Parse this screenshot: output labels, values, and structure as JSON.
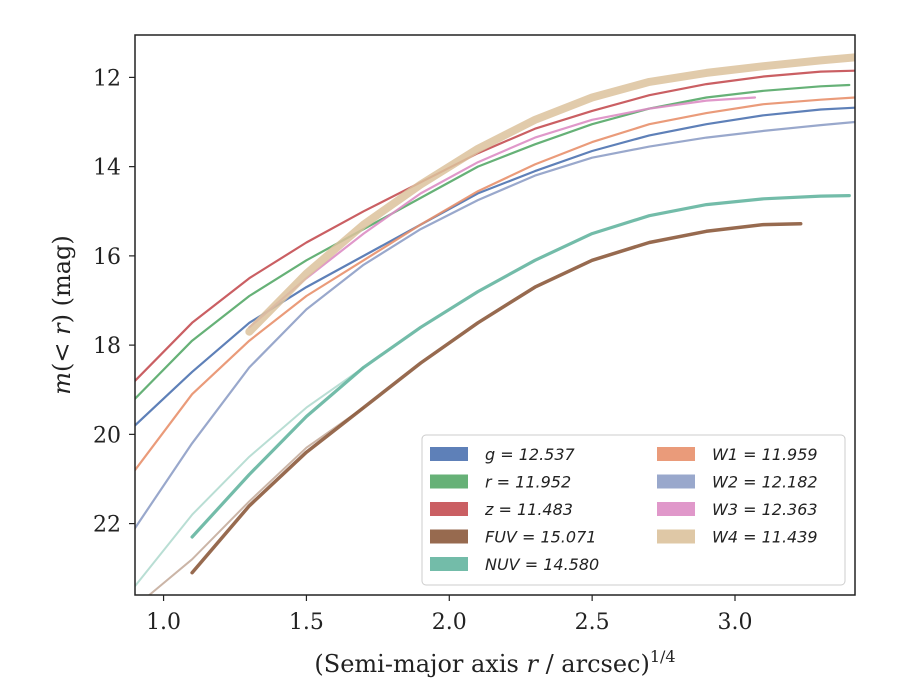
{
  "chart_data": {
    "type": "line",
    "title": "",
    "xlabel": "(Semi-major axis r / arcsec)^{1/4}",
    "ylabel": "m(< r) (mag)",
    "xlim": [
      0.9,
      3.42
    ],
    "ylim": [
      23.6,
      11.05
    ],
    "y_inverted": true,
    "grid": false,
    "legend_position": "bottom-right",
    "x_ticks": [
      "1.0",
      "1.5",
      "2.0",
      "2.5",
      "3.0"
    ],
    "y_ticks": [
      "12",
      "14",
      "16",
      "18",
      "20",
      "22"
    ],
    "series": [
      {
        "name": "g = 12.537",
        "color": "#4c72b0",
        "x": [
          0.9,
          1.1,
          1.3,
          1.5,
          1.7,
          1.9,
          2.1,
          2.3,
          2.5,
          2.7,
          2.9,
          3.1,
          3.3,
          3.42
        ],
        "y": [
          19.8,
          18.6,
          17.5,
          16.7,
          16.0,
          15.3,
          14.6,
          14.1,
          13.65,
          13.3,
          13.05,
          12.85,
          12.72,
          12.68
        ]
      },
      {
        "name": "r = 11.952",
        "color": "#55a868",
        "x": [
          0.9,
          1.1,
          1.3,
          1.5,
          1.7,
          1.9,
          2.1,
          2.3,
          2.5,
          2.7,
          2.9,
          3.1,
          3.3,
          3.4
        ],
        "y": [
          19.2,
          17.9,
          16.9,
          16.1,
          15.4,
          14.7,
          14.0,
          13.5,
          13.05,
          12.7,
          12.45,
          12.3,
          12.2,
          12.17
        ]
      },
      {
        "name": "z = 11.483",
        "color": "#c44e52",
        "x": [
          0.9,
          1.1,
          1.3,
          1.5,
          1.7,
          1.9,
          2.1,
          2.3,
          2.5,
          2.7,
          2.9,
          3.1,
          3.3,
          3.42
        ],
        "y": [
          18.8,
          17.5,
          16.5,
          15.7,
          15.0,
          14.35,
          13.7,
          13.15,
          12.75,
          12.4,
          12.15,
          11.98,
          11.87,
          11.85
        ]
      },
      {
        "name": "FUV = 15.071",
        "color": "#8c5a3c",
        "x": [
          1.1,
          1.3,
          1.5,
          1.7,
          1.9,
          2.1,
          2.3,
          2.5,
          2.7,
          2.9,
          3.1,
          3.23
        ],
        "y": [
          23.1,
          21.6,
          20.4,
          19.4,
          18.4,
          17.5,
          16.7,
          16.1,
          15.7,
          15.45,
          15.3,
          15.28
        ]
      },
      {
        "name": "NUV = 14.580",
        "color": "#64b5a0",
        "x": [
          1.1,
          1.3,
          1.5,
          1.7,
          1.9,
          2.1,
          2.3,
          2.5,
          2.7,
          2.9,
          3.1,
          3.3,
          3.4
        ],
        "y": [
          22.3,
          20.9,
          19.6,
          18.5,
          17.6,
          16.8,
          16.1,
          15.5,
          15.1,
          14.85,
          14.72,
          14.66,
          14.65
        ]
      },
      {
        "name": "W1 = 11.959",
        "color": "#e8906c",
        "x": [
          0.9,
          1.1,
          1.3,
          1.5,
          1.7,
          1.9,
          2.1,
          2.3,
          2.5,
          2.7,
          2.9,
          3.1,
          3.3,
          3.42
        ],
        "y": [
          20.8,
          19.1,
          17.9,
          16.9,
          16.1,
          15.3,
          14.55,
          13.95,
          13.45,
          13.05,
          12.8,
          12.6,
          12.5,
          12.45
        ]
      },
      {
        "name": "W2 = 12.182",
        "color": "#8e9ec6",
        "x": [
          0.9,
          1.1,
          1.3,
          1.5,
          1.7,
          1.9,
          2.1,
          2.3,
          2.5,
          2.7,
          2.9,
          3.1,
          3.3,
          3.42
        ],
        "y": [
          22.1,
          20.2,
          18.5,
          17.2,
          16.2,
          15.4,
          14.75,
          14.2,
          13.8,
          13.55,
          13.35,
          13.2,
          13.07,
          13.0
        ]
      },
      {
        "name": "W3 = 12.363",
        "color": "#dd8dc4",
        "x": [
          1.3,
          1.5,
          1.7,
          1.9,
          2.1,
          2.3,
          2.5,
          2.7,
          2.9,
          3.07
        ],
        "y": [
          17.6,
          16.5,
          15.5,
          14.6,
          13.9,
          13.35,
          12.95,
          12.7,
          12.52,
          12.45
        ]
      },
      {
        "name": "W4 = 11.439",
        "color": "#dcc29c",
        "x": [
          1.3,
          1.5,
          1.7,
          1.9,
          2.1,
          2.3,
          2.5,
          2.7,
          2.9,
          3.1,
          3.3,
          3.42
        ],
        "y": [
          17.7,
          16.4,
          15.3,
          14.4,
          13.6,
          12.95,
          12.45,
          12.1,
          11.9,
          11.75,
          11.62,
          11.55
        ]
      }
    ],
    "faint_inner_extensions": [
      {
        "series": "NUV = 14.580",
        "color": "#64b5a0",
        "x": [
          0.9,
          1.1,
          1.3,
          1.5,
          1.7
        ],
        "y": [
          23.4,
          21.8,
          20.5,
          19.4,
          18.5
        ]
      },
      {
        "series": "FUV = 15.071",
        "color": "#8c5a3c",
        "x": [
          0.95,
          1.1,
          1.3,
          1.5,
          1.7
        ],
        "y": [
          23.6,
          22.8,
          21.5,
          20.3,
          19.4
        ]
      }
    ]
  }
}
